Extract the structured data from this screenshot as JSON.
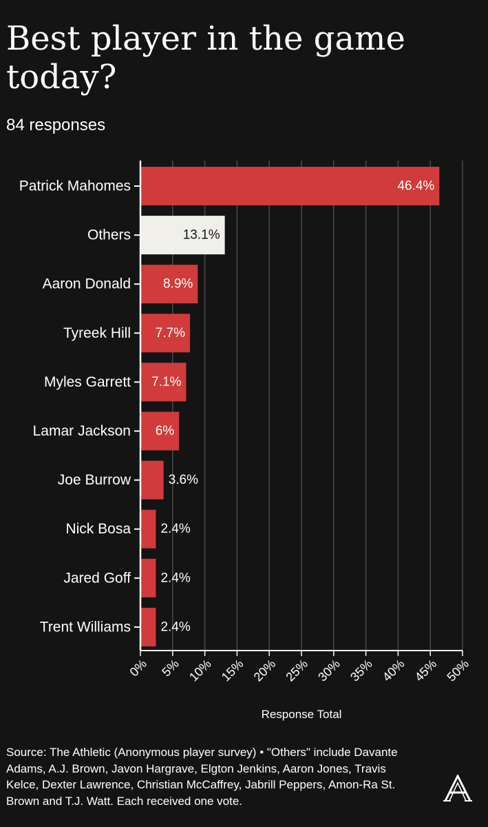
{
  "header": {
    "title": "Best player in the game today?",
    "subtitle": "84 responses"
  },
  "chart_data": {
    "type": "bar",
    "orientation": "horizontal",
    "categories": [
      "Patrick Mahomes",
      "Others",
      "Aaron Donald",
      "Tyreek Hill",
      "Myles Garrett",
      "Lamar Jackson",
      "Joe Burrow",
      "Nick Bosa",
      "Jared Goff",
      "Trent Williams"
    ],
    "values": [
      46.4,
      13.1,
      8.9,
      7.7,
      7.1,
      6,
      3.6,
      2.4,
      2.4,
      2.4
    ],
    "labels": [
      "46.4%",
      "13.1%",
      "8.9%",
      "7.7%",
      "7.1%",
      "6%",
      "3.6%",
      "2.4%",
      "2.4%",
      "2.4%"
    ],
    "bar_colors": [
      "#d13b3b",
      "#f0efe9",
      "#d13b3b",
      "#d13b3b",
      "#d13b3b",
      "#d13b3b",
      "#d13b3b",
      "#d13b3b",
      "#d13b3b",
      "#d13b3b"
    ],
    "xlim": [
      0,
      50
    ],
    "x_ticks": [
      "0%",
      "5%",
      "10%",
      "15%",
      "20%",
      "25%",
      "30%",
      "35%",
      "40%",
      "45%",
      "50%"
    ],
    "xlabel": "Response Total",
    "grid": true
  },
  "footer": {
    "source": "Source: The Athletic (Anonymous player survey) • \"Others\" include Davante Adams, A.J. Brown, Javon Hargrave, Elgton Jenkins, Aaron Jones, Travis Kelce, Dexter Lawrence, Christian McCaffrey, Jabrill Peppers, Amon-Ra St. Brown and T.J. Watt. Each received one vote.",
    "logo_icon": "the-athletic-logo"
  },
  "colors": {
    "background": "#141414",
    "accent": "#d13b3b",
    "others": "#f0efe9",
    "grid": "#4a4a4a"
  }
}
